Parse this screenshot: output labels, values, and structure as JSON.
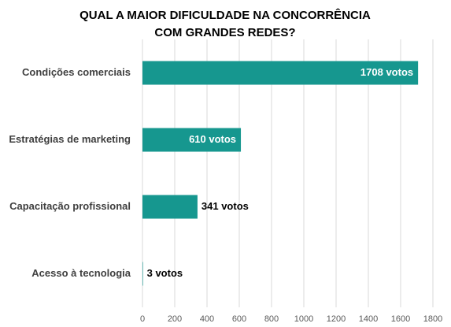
{
  "chart_data": {
    "type": "hbar",
    "title": [
      "QUAL A MAIOR DIFICULDADE NA CONCORRÊNCIA",
      "COM GRANDES REDES?"
    ],
    "categories": [
      "Condições comerciais",
      "Estratégias de marketing",
      "Capacitação profissional",
      "Acesso à tecnologia"
    ],
    "values": [
      1708,
      610,
      341,
      3
    ],
    "value_labels": [
      "1708 votos",
      "610 votos",
      "341 votos",
      "3 votos"
    ],
    "color": "#16978f",
    "xlim": [
      0,
      1800
    ],
    "xticks": [
      0,
      200,
      400,
      600,
      800,
      1000,
      1200,
      1400,
      1600,
      1800
    ],
    "grid": true
  }
}
